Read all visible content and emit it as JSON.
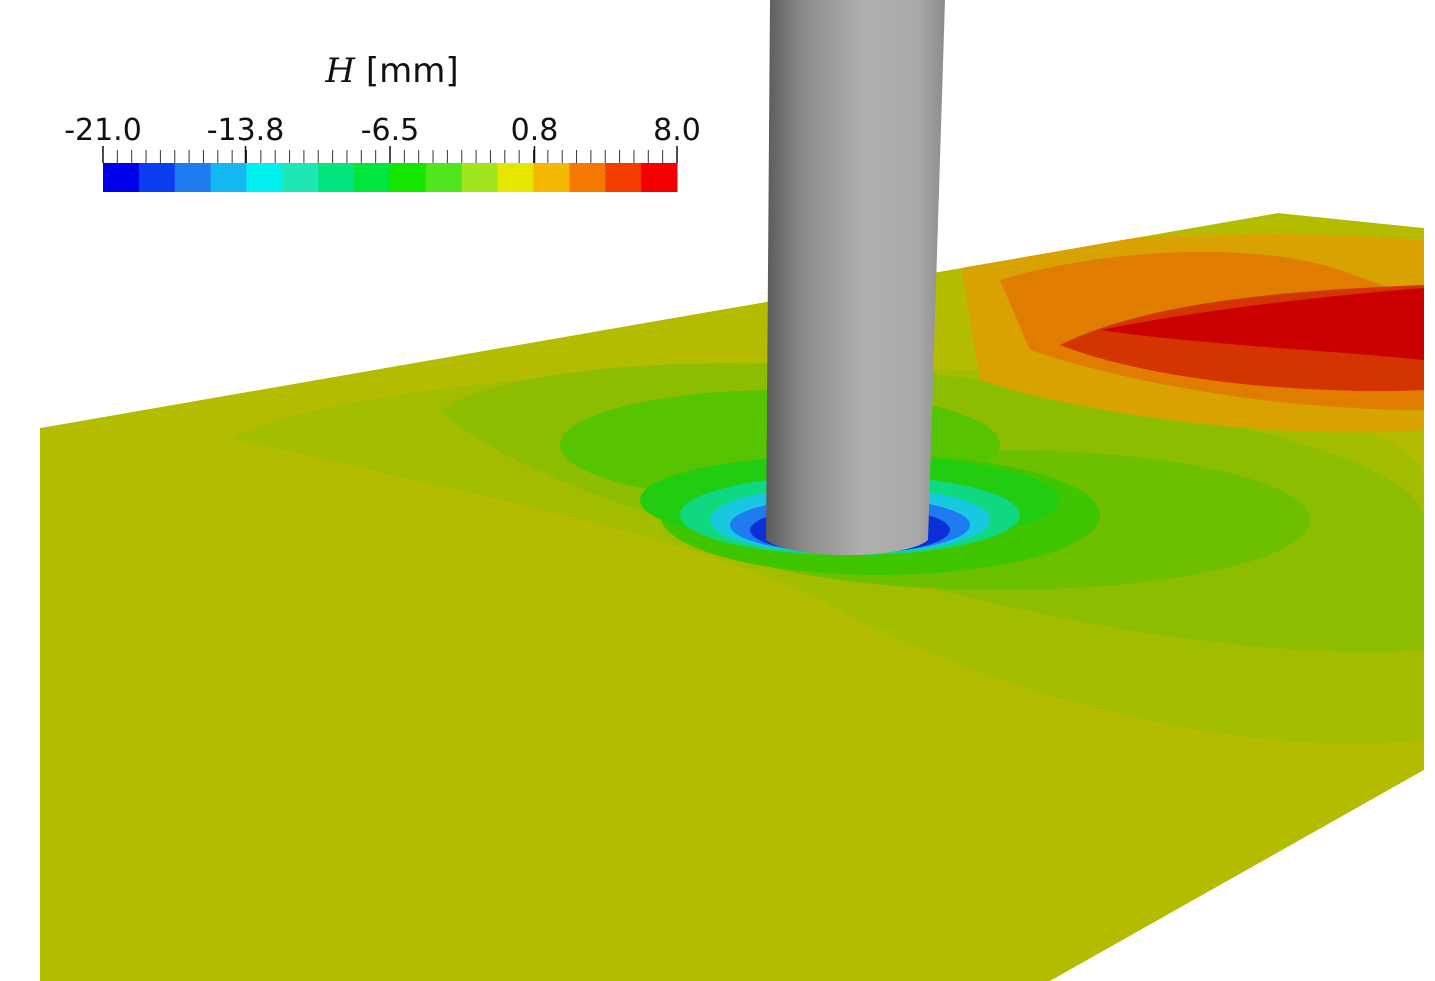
{
  "colorbar": {
    "title_symbol": "H",
    "title_unit": "[mm]",
    "lim": [
      -21,
      8
    ],
    "ticks": [
      {
        "value": -21,
        "label": "-21.0"
      },
      {
        "value": -13.8,
        "label": "-13.8"
      },
      {
        "value": -6.5,
        "label": "-6.5"
      },
      {
        "value": 0.8,
        "label": "0.8"
      },
      {
        "value": 8,
        "label": "8.0"
      }
    ],
    "colors": [
      "#0000e8",
      "#0a3cf0",
      "#1e7cf0",
      "#14b8f0",
      "#00f0f0",
      "#1ee6b4",
      "#00e67c",
      "#00e63c",
      "#14e600",
      "#50e61e",
      "#a0e61e",
      "#e6e600",
      "#f5b800",
      "#f57800",
      "#f53c00",
      "#f50000"
    ]
  }
}
